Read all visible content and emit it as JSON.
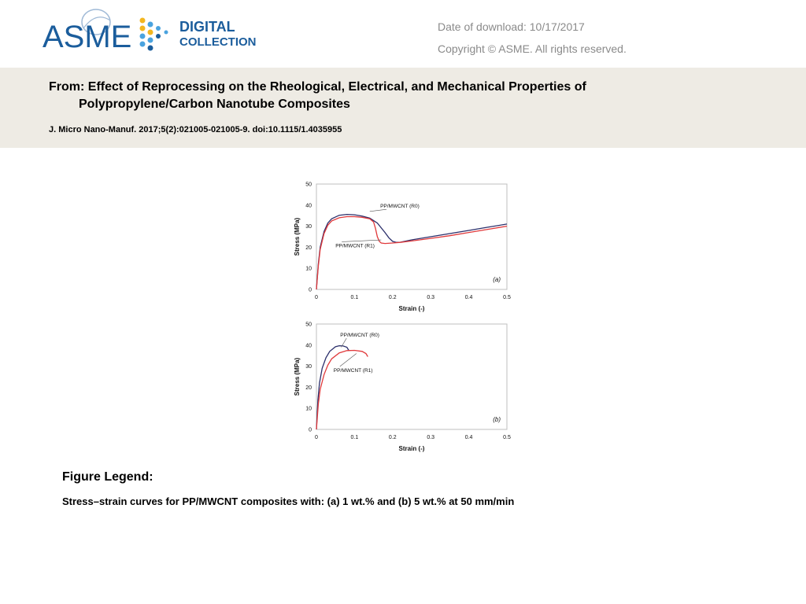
{
  "header": {
    "logo": {
      "brand": "ASME",
      "line1": "DIGITAL",
      "line2": "COLLECTION"
    },
    "download_date": "Date of download:  10/17/2017",
    "copyright": "Copyright © ASME. All rights reserved."
  },
  "article": {
    "from_line1": "From: Effect of Reprocessing on the Rheological, Electrical, and Mechanical Properties of",
    "from_line2": "Polypropylene/Carbon Nanotube Composites",
    "citation": "J. Micro Nano-Manuf. 2017;5(2):021005-021005-9. doi:10.1115/1.4035955"
  },
  "colors": {
    "blue_series": "#2b2f6b",
    "red_series": "#e0393b",
    "band": "#eeebe4",
    "logo_blue": "#1b5d9c",
    "logo_light": "#4aa3df",
    "logo_yellow": "#f3b61f"
  },
  "chart_data": [
    {
      "type": "line",
      "panel_label": "(a)",
      "xlabel": "Strain (-)",
      "ylabel": "Stress (MPa)",
      "xlim": [
        0,
        0.5
      ],
      "ylim": [
        0,
        50
      ],
      "xticks": [
        "0",
        "0.1",
        "0.2",
        "0.3",
        "0.4",
        "0.5"
      ],
      "yticks": [
        "0",
        "10",
        "20",
        "30",
        "40",
        "50"
      ],
      "grid": false,
      "series": [
        {
          "name": "PP/MWCNT (R0)",
          "color": "#2b2f6b",
          "x": [
            0,
            0.005,
            0.01,
            0.02,
            0.03,
            0.04,
            0.06,
            0.08,
            0.1,
            0.12,
            0.14,
            0.16,
            0.18,
            0.19,
            0.2,
            0.21,
            0.22,
            0.25,
            0.3,
            0.35,
            0.4,
            0.45,
            0.5
          ],
          "y": [
            0,
            12,
            20,
            27.5,
            31.5,
            33.5,
            35.2,
            35.6,
            35.4,
            34.8,
            33.8,
            31.5,
            27,
            24.5,
            22.8,
            22.3,
            22.4,
            23.5,
            25,
            26.5,
            28,
            29.5,
            31
          ]
        },
        {
          "name": "PP/MWCNT (R1)",
          "color": "#e0393b",
          "x": [
            0,
            0.005,
            0.01,
            0.02,
            0.03,
            0.04,
            0.06,
            0.08,
            0.1,
            0.12,
            0.14,
            0.15,
            0.155,
            0.16,
            0.165,
            0.17,
            0.18,
            0.2,
            0.22,
            0.25,
            0.3,
            0.35,
            0.4,
            0.45,
            0.5
          ],
          "y": [
            0,
            11,
            19,
            26.5,
            30.5,
            32.5,
            34,
            34.5,
            34.5,
            34.2,
            33.5,
            32,
            29,
            25,
            22.8,
            22,
            21.8,
            22,
            22.3,
            23,
            24.2,
            25.5,
            27,
            28.5,
            30
          ]
        }
      ]
    },
    {
      "type": "line",
      "panel_label": "(b)",
      "xlabel": "Strain (-)",
      "ylabel": "Stress (MPa)",
      "xlim": [
        0,
        0.5
      ],
      "ylim": [
        0,
        50
      ],
      "xticks": [
        "0",
        "0.1",
        "0.2",
        "0.3",
        "0.4",
        "0.5"
      ],
      "yticks": [
        "0",
        "10",
        "20",
        "30",
        "40",
        "50"
      ],
      "grid": false,
      "series": [
        {
          "name": "PP/MWCNT (R0)",
          "color": "#2b2f6b",
          "x": [
            0,
            0.004,
            0.008,
            0.015,
            0.025,
            0.035,
            0.05,
            0.06,
            0.07,
            0.08,
            0.085
          ],
          "y": [
            0,
            14,
            22,
            29,
            34,
            37,
            39.2,
            39.7,
            39.6,
            39,
            37.5
          ]
        },
        {
          "name": "PP/MWCNT (R1)",
          "color": "#e0393b",
          "x": [
            0,
            0.005,
            0.01,
            0.02,
            0.03,
            0.04,
            0.06,
            0.08,
            0.1,
            0.12,
            0.13,
            0.135
          ],
          "y": [
            0,
            12,
            19,
            26,
            30.5,
            33.5,
            36.3,
            37.4,
            37.5,
            37,
            36,
            34.5
          ]
        }
      ]
    }
  ],
  "legend": {
    "heading": "Figure Legend:",
    "text": "Stress–strain curves for PP/MWCNT composites with: (a) 1 wt.% and (b) 5 wt.% at 50 mm/min"
  }
}
